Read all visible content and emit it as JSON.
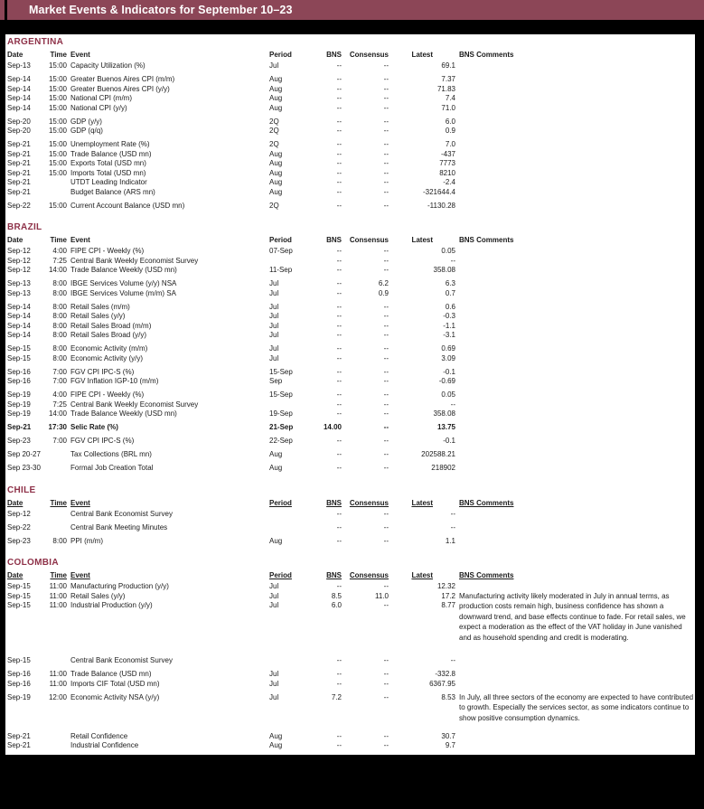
{
  "title": "Market Events & Indicators for September 10–23",
  "columns": [
    "Date",
    "Time",
    "Event",
    "Period",
    "BNS",
    "Consensus",
    "Latest",
    "BNS Comments"
  ],
  "colors": {
    "title_bar": "#8c4657",
    "section_heading": "#8e3148",
    "page_background": "#000000",
    "content_background": "#ffffff"
  },
  "sections": [
    {
      "name": "ARGENTINA",
      "underlined_headers": false,
      "groups": [
        {
          "rows": [
            {
              "date": "Sep-13",
              "time": "15:00",
              "event": "Capacity Utilization (%)",
              "period": "Jul",
              "bns": "--",
              "consensus": "--",
              "latest": "69.1"
            }
          ]
        },
        {
          "rows": [
            {
              "date": "Sep-14",
              "time": "15:00",
              "event": "Greater Buenos Aires CPI (m/m)",
              "period": "Aug",
              "bns": "--",
              "consensus": "--",
              "latest": "7.37"
            },
            {
              "date": "Sep-14",
              "time": "15:00",
              "event": "Greater Buenos Aires CPI (y/y)",
              "period": "Aug",
              "bns": "--",
              "consensus": "--",
              "latest": "71.83"
            },
            {
              "date": "Sep-14",
              "time": "15:00",
              "event": "National CPI (m/m)",
              "period": "Aug",
              "bns": "--",
              "consensus": "--",
              "latest": "7.4"
            },
            {
              "date": "Sep-14",
              "time": "15:00",
              "event": "National CPI (y/y)",
              "period": "Aug",
              "bns": "--",
              "consensus": "--",
              "latest": "71.0"
            }
          ]
        },
        {
          "rows": [
            {
              "date": "Sep-20",
              "time": "15:00",
              "event": "GDP (y/y)",
              "period": "2Q",
              "bns": "--",
              "consensus": "--",
              "latest": "6.0"
            },
            {
              "date": "Sep-20",
              "time": "15:00",
              "event": "GDP (q/q)",
              "period": "2Q",
              "bns": "--",
              "consensus": "--",
              "latest": "0.9"
            }
          ]
        },
        {
          "rows": [
            {
              "date": "Sep-21",
              "time": "15:00",
              "event": "Unemployment Rate (%)",
              "period": "2Q",
              "bns": "--",
              "consensus": "--",
              "latest": "7.0"
            },
            {
              "date": "Sep-21",
              "time": "15:00",
              "event": "Trade Balance (USD mn)",
              "period": "Aug",
              "bns": "--",
              "consensus": "--",
              "latest": "-437"
            },
            {
              "date": "Sep-21",
              "time": "15:00",
              "event": "Exports Total (USD mn)",
              "period": "Aug",
              "bns": "--",
              "consensus": "--",
              "latest": "7773"
            },
            {
              "date": "Sep-21",
              "time": "15:00",
              "event": "Imports Total (USD mn)",
              "period": "Aug",
              "bns": "--",
              "consensus": "--",
              "latest": "8210"
            },
            {
              "date": "Sep-21",
              "time": "",
              "event": "UTDT Leading Indicator",
              "period": "Aug",
              "bns": "--",
              "consensus": "--",
              "latest": "-2.4"
            },
            {
              "date": "Sep-21",
              "time": "",
              "event": "Budget Balance (ARS mn)",
              "period": "Aug",
              "bns": "--",
              "consensus": "--",
              "latest": "-321644.4"
            }
          ]
        },
        {
          "rows": [
            {
              "date": "Sep-22",
              "time": "15:00",
              "event": "Current Account Balance (USD mn)",
              "period": "2Q",
              "bns": "--",
              "consensus": "--",
              "latest": "-1130.28"
            }
          ]
        }
      ]
    },
    {
      "name": "BRAZIL",
      "underlined_headers": false,
      "groups": [
        {
          "rows": [
            {
              "date": "Sep-12",
              "time": "4:00",
              "event": "FIPE CPI - Weekly (%)",
              "period": "07-Sep",
              "bns": "--",
              "consensus": "--",
              "latest": "0.05"
            },
            {
              "date": "Sep-12",
              "time": "7:25",
              "event": "Central Bank Weekly Economist Survey",
              "period": "",
              "bns": "--",
              "consensus": "--",
              "latest": "--"
            },
            {
              "date": "Sep-12",
              "time": "14:00",
              "event": "Trade Balance Weekly (USD mn)",
              "period": "11-Sep",
              "bns": "--",
              "consensus": "--",
              "latest": "358.08"
            }
          ]
        },
        {
          "rows": [
            {
              "date": "Sep-13",
              "time": "8:00",
              "event": "IBGE Services Volume (y/y) NSA",
              "period": "Jul",
              "bns": "--",
              "consensus": "6.2",
              "latest": "6.3"
            },
            {
              "date": "Sep-13",
              "time": "8:00",
              "event": "IBGE Services Volume (m/m) SA",
              "period": "Jul",
              "bns": "--",
              "consensus": "0.9",
              "latest": "0.7"
            }
          ]
        },
        {
          "rows": [
            {
              "date": "Sep-14",
              "time": "8:00",
              "event": "Retail Sales (m/m)",
              "period": "Jul",
              "bns": "--",
              "consensus": "--",
              "latest": "0.6"
            },
            {
              "date": "Sep-14",
              "time": "8:00",
              "event": "Retail Sales (y/y)",
              "period": "Jul",
              "bns": "--",
              "consensus": "--",
              "latest": "-0.3"
            },
            {
              "date": "Sep-14",
              "time": "8:00",
              "event": "Retail Sales Broad (m/m)",
              "period": "Jul",
              "bns": "--",
              "consensus": "--",
              "latest": "-1.1"
            },
            {
              "date": "Sep-14",
              "time": "8:00",
              "event": "Retail Sales Broad (y/y)",
              "period": "Jul",
              "bns": "--",
              "consensus": "--",
              "latest": "-3.1"
            }
          ]
        },
        {
          "rows": [
            {
              "date": "Sep-15",
              "time": "8:00",
              "event": "Economic Activity (m/m)",
              "period": "Jul",
              "bns": "--",
              "consensus": "--",
              "latest": "0.69"
            },
            {
              "date": "Sep-15",
              "time": "8:00",
              "event": "Economic Activity (y/y)",
              "period": "Jul",
              "bns": "--",
              "consensus": "--",
              "latest": "3.09"
            }
          ]
        },
        {
          "rows": [
            {
              "date": "Sep-16",
              "time": "7:00",
              "event": "FGV CPI IPC-S (%)",
              "period": "15-Sep",
              "bns": "--",
              "consensus": "--",
              "latest": "-0.1"
            },
            {
              "date": "Sep-16",
              "time": "7:00",
              "event": "FGV Inflation IGP-10 (m/m)",
              "period": "Sep",
              "bns": "--",
              "consensus": "--",
              "latest": "-0.69"
            }
          ]
        },
        {
          "rows": [
            {
              "date": "Sep-19",
              "time": "4:00",
              "event": "FIPE CPI - Weekly (%)",
              "period": "15-Sep",
              "bns": "--",
              "consensus": "--",
              "latest": "0.05"
            },
            {
              "date": "Sep-19",
              "time": "7:25",
              "event": "Central Bank Weekly Economist Survey",
              "period": "",
              "bns": "--",
              "consensus": "--",
              "latest": "--"
            },
            {
              "date": "Sep-19",
              "time": "14:00",
              "event": "Trade Balance Weekly (USD mn)",
              "period": "19-Sep",
              "bns": "--",
              "consensus": "--",
              "latest": "358.08"
            }
          ]
        },
        {
          "rows": [
            {
              "date": "Sep-21",
              "time": "17:30",
              "event": "Selic Rate (%)",
              "period": "21-Sep",
              "bns": "14.00",
              "consensus": "--",
              "latest": "13.75",
              "bold": true
            }
          ]
        },
        {
          "rows": [
            {
              "date": "Sep-23",
              "time": "7:00",
              "event": "FGV CPI IPC-S (%)",
              "period": "22-Sep",
              "bns": "--",
              "consensus": "--",
              "latest": "-0.1"
            }
          ]
        },
        {
          "rows": [
            {
              "date": "Sep 20-27",
              "time": "",
              "event": "Tax Collections (BRL mn)",
              "period": "Aug",
              "bns": "--",
              "consensus": "--",
              "latest": "202588.21"
            }
          ]
        },
        {
          "rows": [
            {
              "date": "Sep 23-30",
              "time": "",
              "event": "Formal Job Creation Total",
              "period": "Aug",
              "bns": "--",
              "consensus": "--",
              "latest": "218902"
            }
          ]
        }
      ]
    },
    {
      "name": "CHILE",
      "underlined_headers": true,
      "groups": [
        {
          "rows": [
            {
              "date": "Sep-12",
              "time": "",
              "event": "Central Bank Economist Survey",
              "period": "",
              "bns": "--",
              "consensus": "--",
              "latest": "--"
            }
          ]
        },
        {
          "rows": [
            {
              "date": "Sep-22",
              "time": "",
              "event": "Central Bank Meeting Minutes",
              "period": "",
              "bns": "--",
              "consensus": "--",
              "latest": "--"
            }
          ]
        },
        {
          "rows": [
            {
              "date": "Sep-23",
              "time": "8:00",
              "event": "PPI (m/m)",
              "period": "Aug",
              "bns": "--",
              "consensus": "--",
              "latest": "1.1"
            }
          ]
        }
      ]
    },
    {
      "name": "COLOMBIA",
      "underlined_headers": true,
      "groups": [
        {
          "rows": [
            {
              "date": "Sep-15",
              "time": "11:00",
              "event": "Manufacturing Production (y/y)",
              "period": "Jul",
              "bns": "--",
              "consensus": "--",
              "latest": "12.32"
            },
            {
              "date": "Sep-15",
              "time": "11:00",
              "event": "Retail Sales (y/y)",
              "period": "Jul",
              "bns": "8.5",
              "consensus": "11.0",
              "latest": "17.2",
              "comment": "Manufacturing activity likely moderated in July in annual terms, as production costs remain high, business confidence has shown a downward trend, and base effects continue to fade. For retail sales, we expect a moderation as the effect of the VAT holiday in June vanished and as household spending and credit is moderating."
            },
            {
              "date": "Sep-15",
              "time": "11:00",
              "event": "Industrial Production (y/y)",
              "period": "Jul",
              "bns": "6.0",
              "consensus": "--",
              "latest": "8.77"
            }
          ]
        },
        {
          "rows": [
            {
              "date": "Sep-15",
              "time": "",
              "event": "Central Bank Economist Survey",
              "period": "",
              "bns": "--",
              "consensus": "--",
              "latest": "--"
            }
          ]
        },
        {
          "rows": [
            {
              "date": "Sep-16",
              "time": "11:00",
              "event": "Trade Balance (USD mn)",
              "period": "Jul",
              "bns": "--",
              "consensus": "--",
              "latest": "-332.8"
            },
            {
              "date": "Sep-16",
              "time": "11:00",
              "event": "Imports CIF Total (USD mn)",
              "period": "Jul",
              "bns": "--",
              "consensus": "--",
              "latest": "6367.95"
            }
          ]
        },
        {
          "rows": [
            {
              "date": "Sep-19",
              "time": "12:00",
              "event": "Economic Activity NSA (y/y)",
              "period": "Jul",
              "bns": "7.2",
              "consensus": "--",
              "latest": "8.53",
              "comment": "In July, all three sectors of the economy are expected to have contributed to growth. Especially the services sector, as some indicators continue to show positive consumption dynamics."
            }
          ]
        },
        {
          "rows": [
            {
              "date": "Sep-21",
              "time": "",
              "event": "Retail Confidence",
              "period": "Aug",
              "bns": "--",
              "consensus": "--",
              "latest": "30.7"
            },
            {
              "date": "Sep-21",
              "time": "",
              "event": "Industrial Confidence",
              "period": "Aug",
              "bns": "--",
              "consensus": "--",
              "latest": "9.7"
            }
          ]
        }
      ]
    }
  ]
}
